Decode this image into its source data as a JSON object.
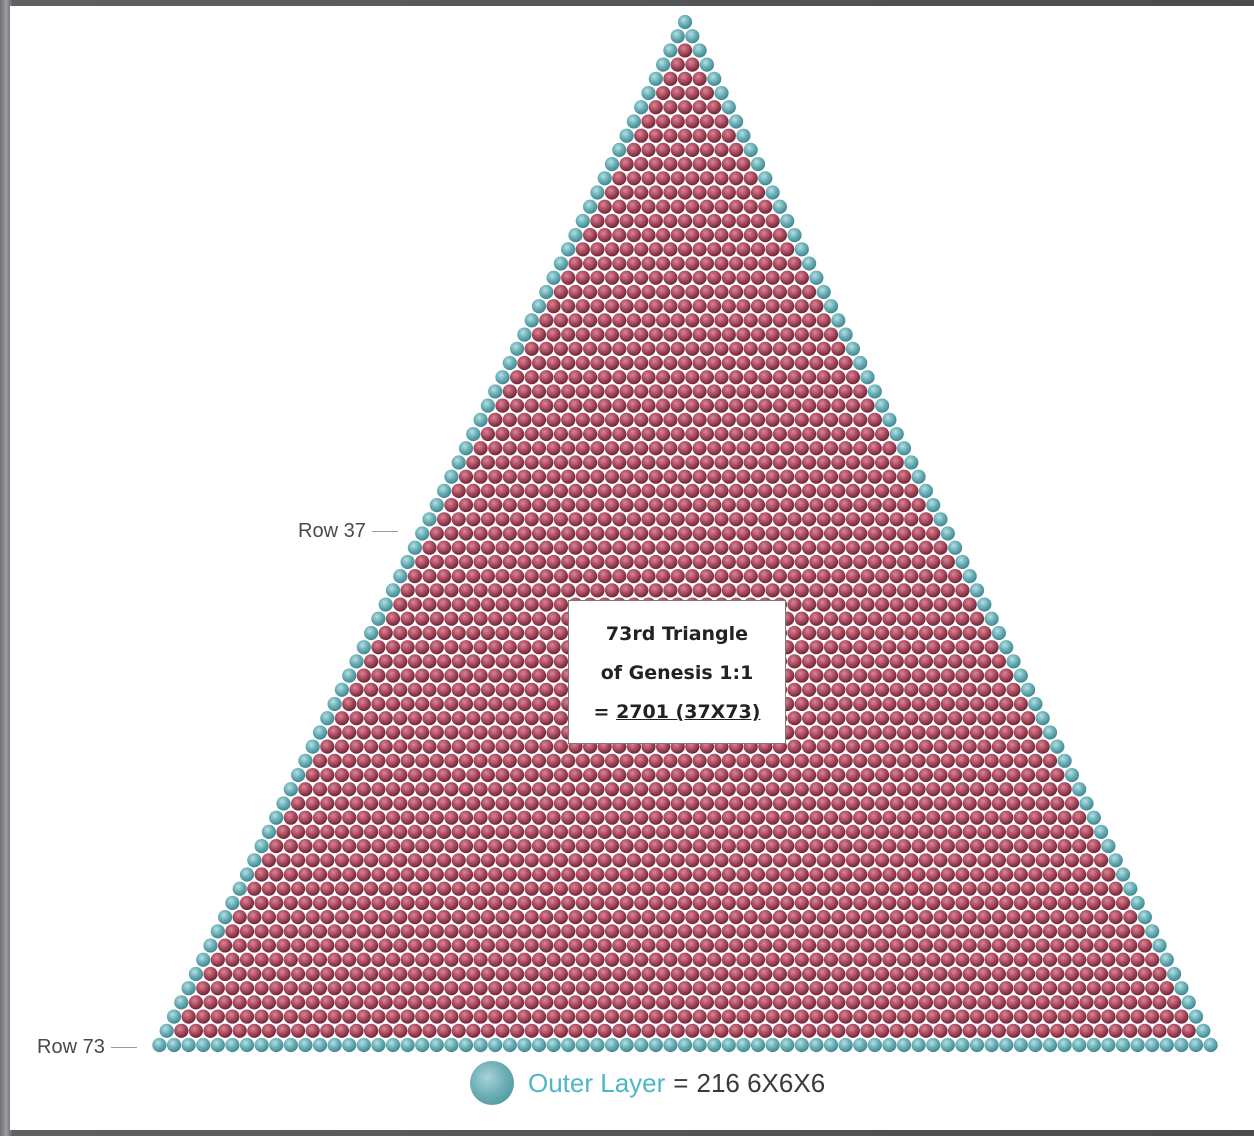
{
  "diagram": {
    "rows": 73,
    "inner_color": "#b04f63",
    "outer_color": "#6fb3ba"
  },
  "labels": {
    "row_37": "Row 37",
    "row_73": "Row 73"
  },
  "info_box": {
    "line1": "73rd Triangle",
    "line2": "of Genesis 1:1",
    "line3_prefix": "= ",
    "line3_value": "2701 (37X73)"
  },
  "legend": {
    "name": "Outer Layer",
    "equals": "=",
    "value": "216 6X6X6"
  }
}
